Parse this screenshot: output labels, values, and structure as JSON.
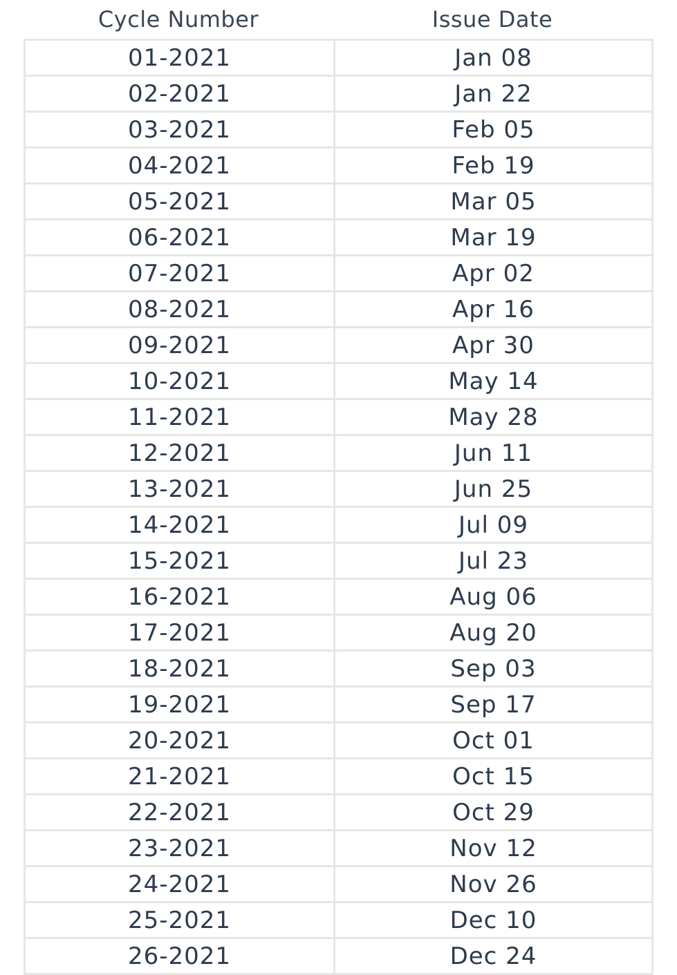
{
  "columns": {
    "cycle": "Cycle Number",
    "issue": "Issue Date"
  },
  "rows": [
    {
      "cycle": "01-2021",
      "date": "Jan 08"
    },
    {
      "cycle": "02-2021",
      "date": "Jan 22"
    },
    {
      "cycle": "03-2021",
      "date": "Feb 05"
    },
    {
      "cycle": "04-2021",
      "date": "Feb 19"
    },
    {
      "cycle": "05-2021",
      "date": "Mar 05"
    },
    {
      "cycle": "06-2021",
      "date": "Mar 19"
    },
    {
      "cycle": "07-2021",
      "date": "Apr 02"
    },
    {
      "cycle": "08-2021",
      "date": "Apr 16"
    },
    {
      "cycle": "09-2021",
      "date": "Apr 30"
    },
    {
      "cycle": "10-2021",
      "date": "May 14"
    },
    {
      "cycle": "11-2021",
      "date": "May 28"
    },
    {
      "cycle": "12-2021",
      "date": "Jun 11"
    },
    {
      "cycle": "13-2021",
      "date": "Jun 25"
    },
    {
      "cycle": "14-2021",
      "date": "Jul 09"
    },
    {
      "cycle": "15-2021",
      "date": "Jul 23"
    },
    {
      "cycle": "16-2021",
      "date": "Aug 06"
    },
    {
      "cycle": "17-2021",
      "date": "Aug 20"
    },
    {
      "cycle": "18-2021",
      "date": "Sep 03"
    },
    {
      "cycle": "19-2021",
      "date": "Sep 17"
    },
    {
      "cycle": "20-2021",
      "date": "Oct 01"
    },
    {
      "cycle": "21-2021",
      "date": "Oct 15"
    },
    {
      "cycle": "22-2021",
      "date": "Oct 29"
    },
    {
      "cycle": "23-2021",
      "date": "Nov 12"
    },
    {
      "cycle": "24-2021",
      "date": "Nov 26"
    },
    {
      "cycle": "25-2021",
      "date": "Dec 10"
    },
    {
      "cycle": "26-2021",
      "date": "Dec 24"
    }
  ]
}
